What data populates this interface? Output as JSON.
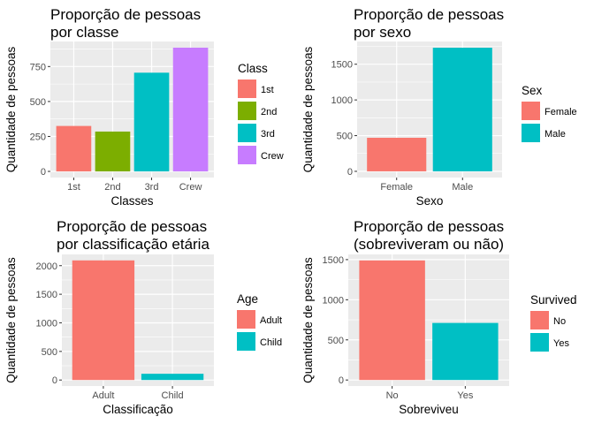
{
  "chart_data": [
    {
      "type": "bar",
      "title": [
        "Proporção de pessoas",
        "por classe"
      ],
      "xlabel": "Classes",
      "ylabel": "Quantidade de pessoas",
      "categories": [
        "1st",
        "2nd",
        "3rd",
        "Crew"
      ],
      "values": [
        325,
        285,
        706,
        885
      ],
      "colors": [
        "#F8766D",
        "#7CAE00",
        "#00BFC4",
        "#C77CFF"
      ],
      "yticks": [
        0,
        250,
        500,
        750
      ],
      "ylim": [
        -44,
        929
      ],
      "legend": {
        "title": "Class",
        "labels": [
          "1st",
          "2nd",
          "3rd",
          "Crew"
        ],
        "position": "right"
      }
    },
    {
      "type": "bar",
      "title": [
        "Proporção de pessoas",
        "por sexo"
      ],
      "xlabel": "Sexo",
      "ylabel": "Quantidade de pessoas",
      "categories": [
        "Female",
        "Male"
      ],
      "values": [
        470,
        1731
      ],
      "colors": [
        "#F8766D",
        "#00BFC4"
      ],
      "yticks": [
        0,
        500,
        1000,
        1500
      ],
      "ylim": [
        -87,
        1818
      ],
      "legend": {
        "title": "Sex",
        "labels": [
          "Female",
          "Male"
        ],
        "position": "right"
      }
    },
    {
      "type": "bar",
      "title": [
        "Proporção de pessoas",
        "por classificação etária"
      ],
      "xlabel": "Classificação",
      "ylabel": "Quantidade de pessoas",
      "categories": [
        "Adult",
        "Child"
      ],
      "values": [
        2092,
        109
      ],
      "colors": [
        "#F8766D",
        "#00BFC4"
      ],
      "yticks": [
        0,
        500,
        1000,
        1500,
        2000
      ],
      "ylim": [
        -105,
        2197
      ],
      "legend": {
        "title": "Age",
        "labels": [
          "Adult",
          "Child"
        ],
        "position": "right"
      }
    },
    {
      "type": "bar",
      "title": [
        "Proporção de pessoas",
        "(sobreviveram ou não)"
      ],
      "xlabel": "Sobreviveu",
      "ylabel": "Quantidade de pessoas",
      "categories": [
        "No",
        "Yes"
      ],
      "values": [
        1490,
        711
      ],
      "colors": [
        "#F8766D",
        "#00BFC4"
      ],
      "yticks": [
        0,
        500,
        1000,
        1500
      ],
      "ylim": [
        -75,
        1565
      ],
      "legend": {
        "title": "Survived",
        "labels": [
          "No",
          "Yes"
        ],
        "position": "right"
      }
    }
  ]
}
